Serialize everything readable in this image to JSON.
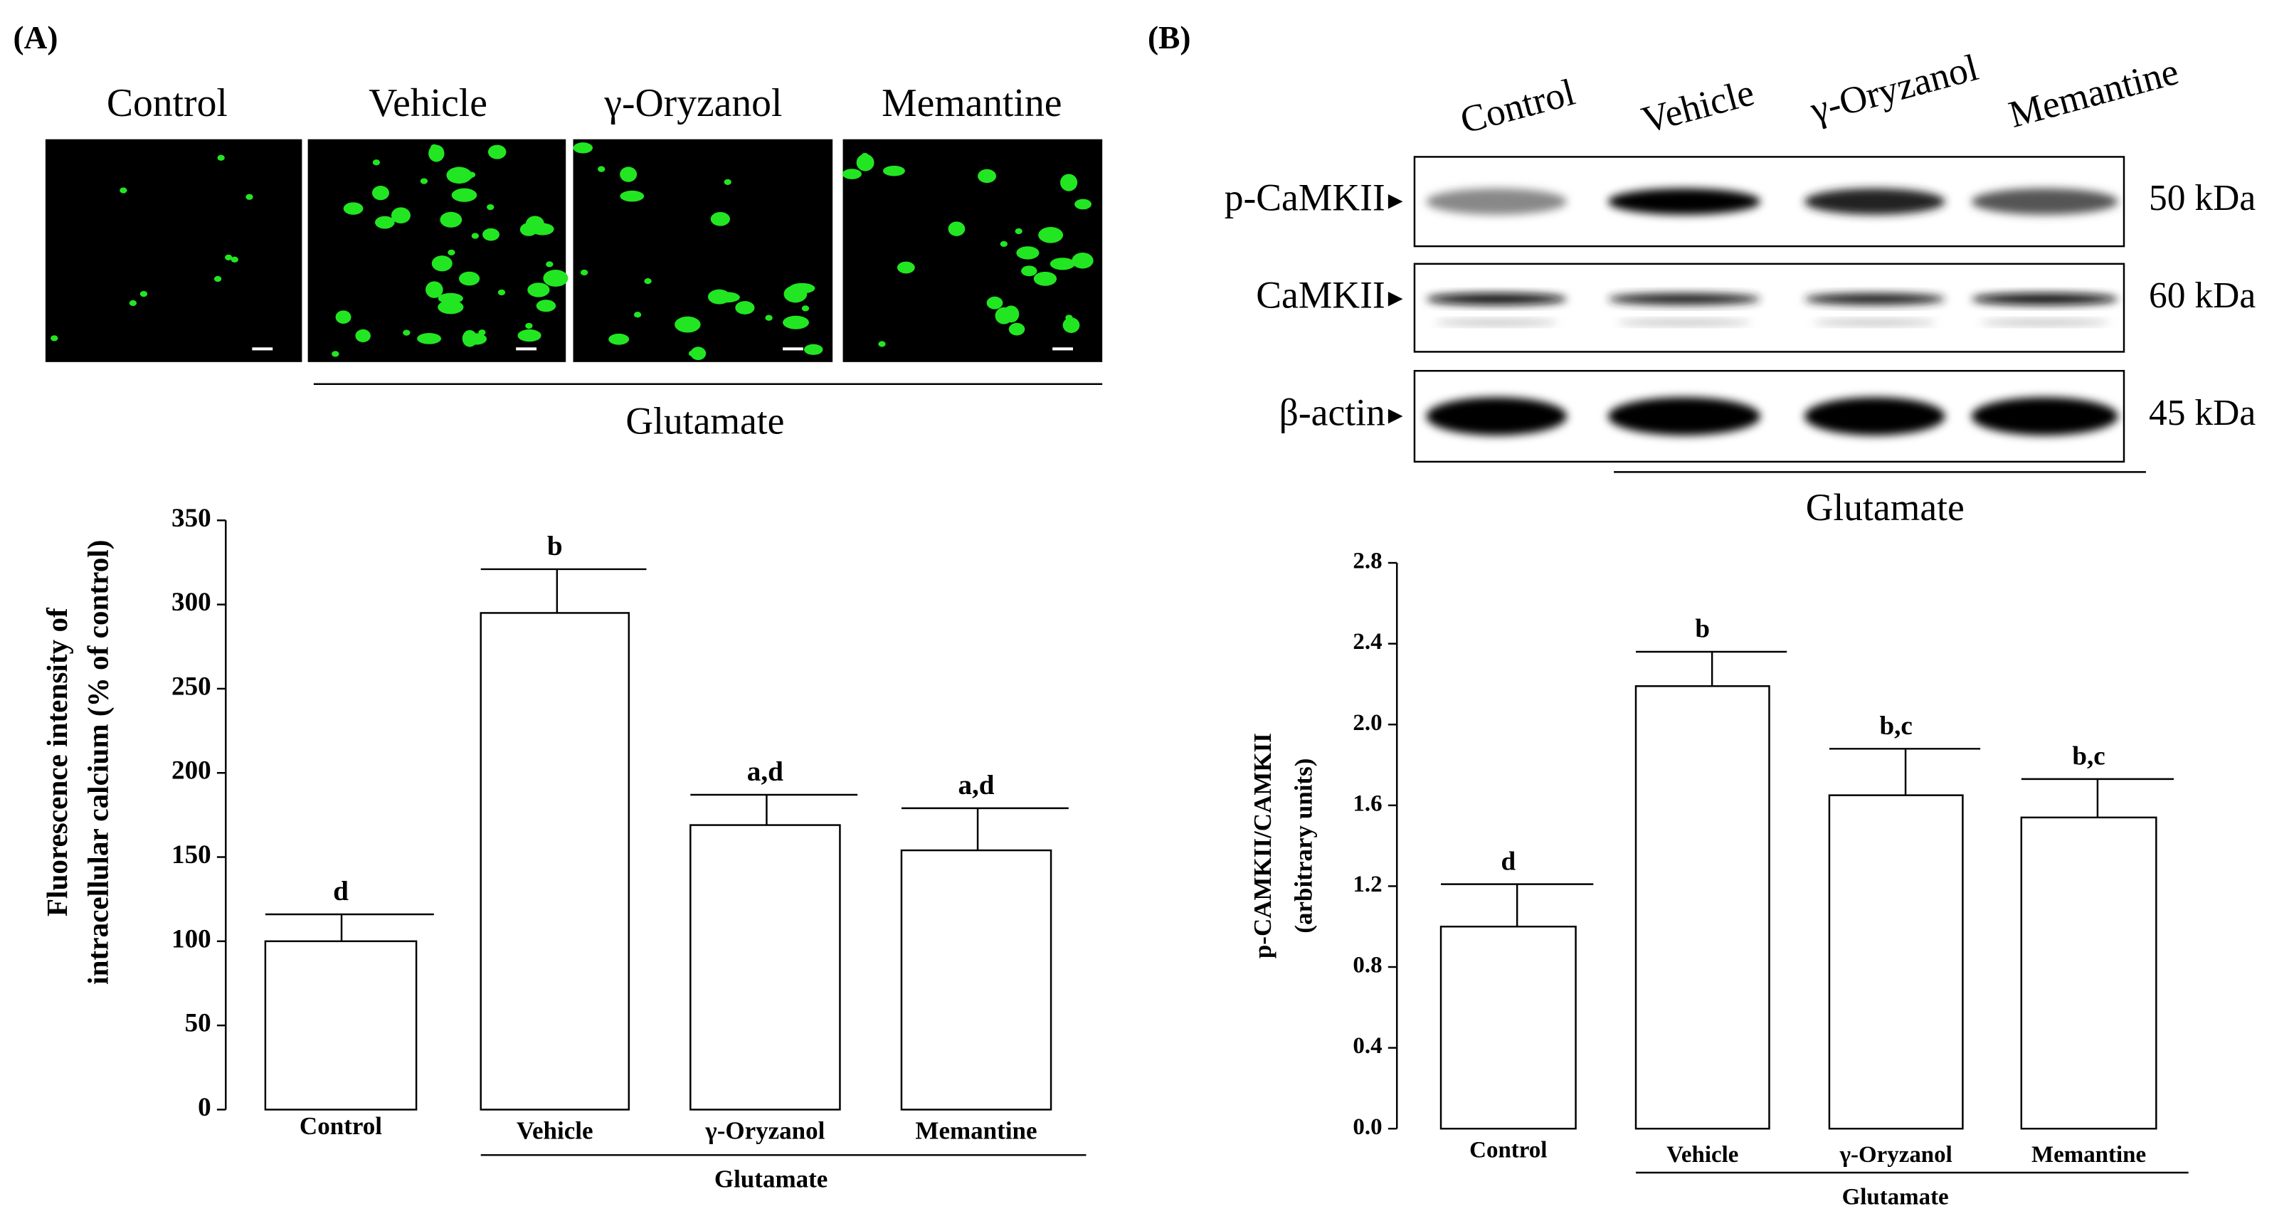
{
  "figure": {
    "panel_a_label": "(A)",
    "panel_b_label": "(B)"
  },
  "micrographs": {
    "labels": [
      "Control",
      "Vehicle",
      "γ-Oryzanol",
      "Memantine"
    ],
    "group_label": "Glutamate"
  },
  "blot": {
    "columns": [
      "Control",
      "Vehicle",
      "γ-Oryzanol",
      "Memantine"
    ],
    "rows": [
      {
        "label": "p-CaMKII",
        "size": "50 kDa"
      },
      {
        "label": "CaMKII",
        "size": "60 kDa"
      },
      {
        "label": "β-actin",
        "size": "45 kDa"
      }
    ],
    "group_label": "Glutamate"
  },
  "chart_data": [
    {
      "type": "bar",
      "y_label": [
        "Fluorescence intensity of",
        "intracellular calcium (% of control)"
      ],
      "categories": [
        "Control",
        "Vehicle",
        "γ-Oryzanol",
        "Memantine"
      ],
      "values": [
        100,
        295,
        169,
        154
      ],
      "errors": [
        16,
        26,
        18,
        25
      ],
      "annotations": [
        "d",
        "b",
        "a,d",
        "a,d"
      ],
      "group_label": "Glutamate",
      "color": "#ffffff",
      "ylim": [
        0,
        350
      ],
      "yticks": [
        0,
        50,
        100,
        150,
        200,
        250,
        300,
        350
      ]
    },
    {
      "type": "bar",
      "y_label": [
        "p-CAMKII/CAMKII",
        "(arbitrary units)"
      ],
      "categories": [
        "Control",
        "Vehicle",
        "γ-Oryzanol",
        "Memantine"
      ],
      "values": [
        1.0,
        2.19,
        1.65,
        1.54
      ],
      "errors": [
        0.21,
        0.17,
        0.23,
        0.19
      ],
      "annotations": [
        "d",
        "b",
        "b,c",
        "b,c"
      ],
      "group_label": "Glutamate",
      "color": "#ffffff",
      "ylim": [
        0,
        2.8
      ],
      "yticks": [
        {
          "value": 0,
          "label": "0.0"
        },
        0.4,
        0.8,
        1.2,
        1.6,
        {
          "value": 2,
          "label": "2.0"
        },
        2.4,
        2.8
      ]
    }
  ]
}
